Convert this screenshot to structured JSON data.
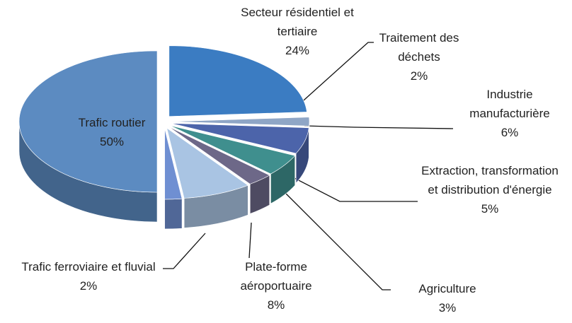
{
  "chart_data": {
    "type": "pie3d",
    "categories": [
      "Secteur résidentiel et tertiaire",
      "Traitement des déchets",
      "Industrie manufacturière",
      "Extraction, transformation et distribution d'énergie",
      "Agriculture",
      "Plate-forme aéroportuaire",
      "Trafic ferroviaire et fluvial",
      "Trafic routier"
    ],
    "values": [
      24,
      2,
      6,
      5,
      3,
      8,
      2,
      50
    ],
    "value_labels": [
      "24%",
      "2%",
      "6%",
      "5%",
      "3%",
      "8%",
      "2%",
      "50%"
    ],
    "colors": [
      "#3b7cc2",
      "#8fa6c6",
      "#4c64aa",
      "#3f8f8e",
      "#6d6888",
      "#a9c4e3",
      "#6f8fd2",
      "#5c8bc1"
    ]
  }
}
